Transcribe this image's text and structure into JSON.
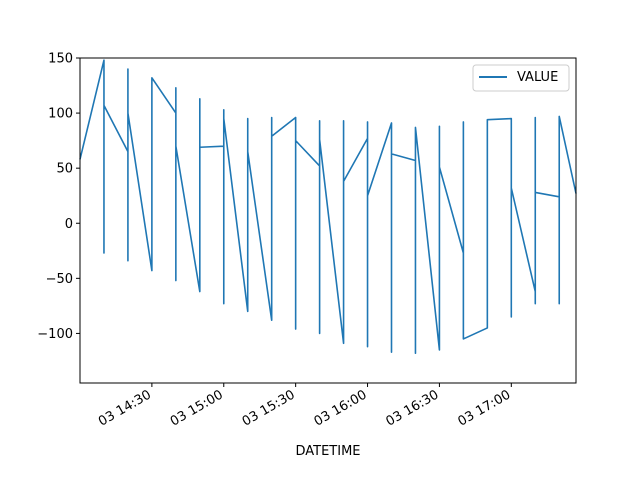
{
  "chart_data": {
    "type": "line",
    "title": "",
    "xlabel": "DATETIME",
    "ylabel": "",
    "x_axis_type": "datetime",
    "xlim": [
      "03 14:00",
      "03 17:27"
    ],
    "ylim": [
      -145,
      150
    ],
    "grid": false,
    "legend": {
      "placement": "top-right",
      "entries": [
        "VALUE"
      ]
    },
    "x_ticks": [
      "03 14:30",
      "03 15:00",
      "03 15:30",
      "03 16:00",
      "03 16:30",
      "03 17:00"
    ],
    "y_ticks": [
      150,
      100,
      50,
      0,
      -50,
      -100
    ],
    "series": [
      {
        "name": "VALUE",
        "color": "#1f77b4",
        "points": [
          [
            "03 14:00",
            58
          ],
          [
            "03 14:10",
            148
          ],
          [
            "03 14:10",
            -27
          ],
          [
            "03 14:10",
            107
          ],
          [
            "03 14:20",
            65
          ],
          [
            "03 14:20",
            140
          ],
          [
            "03 14:20",
            -34
          ],
          [
            "03 14:20",
            100
          ],
          [
            "03 14:30",
            -43
          ],
          [
            "03 14:30",
            103
          ],
          [
            "03 14:30",
            67
          ],
          [
            "03 14:30",
            132
          ],
          [
            "03 14:40",
            100
          ],
          [
            "03 14:40",
            -52
          ],
          [
            "03 14:40",
            123
          ],
          [
            "03 14:40",
            70
          ],
          [
            "03 14:50",
            -62
          ],
          [
            "03 14:50",
            113
          ],
          [
            "03 14:50",
            69
          ],
          [
            "03 15:00",
            70
          ],
          [
            "03 15:00",
            -73
          ],
          [
            "03 15:00",
            103
          ],
          [
            "03 15:00",
            95
          ],
          [
            "03 15:10",
            -80
          ],
          [
            "03 15:10",
            95
          ],
          [
            "03 15:10",
            65
          ],
          [
            "03 15:20",
            -88
          ],
          [
            "03 15:20",
            96
          ],
          [
            "03 15:20",
            79
          ],
          [
            "03 15:30",
            96
          ],
          [
            "03 15:30",
            -96
          ],
          [
            "03 15:30",
            75
          ],
          [
            "03 15:40",
            52
          ],
          [
            "03 15:40",
            -100
          ],
          [
            "03 15:40",
            93
          ],
          [
            "03 15:40",
            76
          ],
          [
            "03 15:50",
            -109
          ],
          [
            "03 15:50",
            93
          ],
          [
            "03 15:50",
            38
          ],
          [
            "03 16:00",
            77
          ],
          [
            "03 16:00",
            -112
          ],
          [
            "03 16:00",
            92
          ],
          [
            "03 16:00",
            25
          ],
          [
            "03 16:10",
            91
          ],
          [
            "03 16:10",
            -117
          ],
          [
            "03 16:10",
            63
          ],
          [
            "03 16:20",
            57
          ],
          [
            "03 16:20",
            -118
          ],
          [
            "03 16:20",
            87
          ],
          [
            "03 16:30",
            -115
          ],
          [
            "03 16:30",
            88
          ],
          [
            "03 16:30",
            51
          ],
          [
            "03 16:40",
            -27
          ],
          [
            "03 16:40",
            92
          ],
          [
            "03 16:40",
            -105
          ],
          [
            "03 16:50",
            -95
          ],
          [
            "03 16:50",
            40
          ],
          [
            "03 16:50",
            -40
          ],
          [
            "03 16:50",
            94
          ],
          [
            "03 17:00",
            95
          ],
          [
            "03 17:00",
            -85
          ],
          [
            "03 17:00",
            32
          ],
          [
            "03 17:10",
            -62
          ],
          [
            "03 17:10",
            -73
          ],
          [
            "03 17:10",
            96
          ],
          [
            "03 17:10",
            28
          ],
          [
            "03 17:20",
            24
          ],
          [
            "03 17:20",
            -73
          ],
          [
            "03 17:20",
            97
          ],
          [
            "03 17:27",
            27
          ]
        ]
      }
    ]
  }
}
